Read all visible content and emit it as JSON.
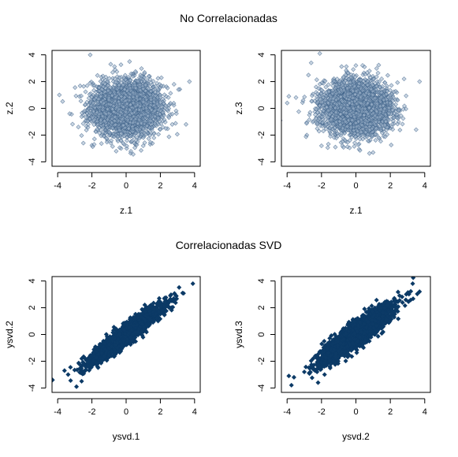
{
  "titles": {
    "top": "No Correlacionadas",
    "bottom": "Correlacionadas SVD"
  },
  "colors": {
    "uncorrelated_fill": "#9db3ca",
    "uncorrelated_stroke": "#3f6289",
    "correlated_fill": "#0c3a66",
    "axis": "#000000"
  },
  "chart_data": [
    {
      "type": "scatter",
      "xlabel": "z.1",
      "ylabel": "z.2",
      "xlim": [
        -4,
        4
      ],
      "ylim": [
        -4,
        4
      ],
      "x_ticks": [
        -4,
        -2,
        0,
        2,
        4
      ],
      "y_ticks": [
        -4,
        -2,
        0,
        2,
        4
      ],
      "marker": "diamond",
      "grid": false,
      "distribution": {
        "n_points": 3000,
        "x_mean": 0,
        "x_sd": 1,
        "y_mean": 0,
        "y_sd": 1,
        "correlation": 0.0
      },
      "notable_points": [
        {
          "x": -2.1,
          "y": 4.0
        },
        {
          "x": 0.2,
          "y": 3.5
        },
        {
          "x": -0.9,
          "y": 3.3
        },
        {
          "x": 3.7,
          "y": 2.0
        },
        {
          "x": -3.9,
          "y": 1.0
        },
        {
          "x": 3.5,
          "y": -1.2
        },
        {
          "x": -2.5,
          "y": -2.6
        },
        {
          "x": 1.0,
          "y": -2.8
        },
        {
          "x": -3.3,
          "y": -0.4
        },
        {
          "x": 2.8,
          "y": 1.8
        }
      ]
    },
    {
      "type": "scatter",
      "xlabel": "z.1",
      "ylabel": "z.3",
      "xlim": [
        -4,
        4
      ],
      "ylim": [
        -4,
        4
      ],
      "x_ticks": [
        -4,
        -2,
        0,
        2,
        4
      ],
      "y_ticks": [
        -4,
        -2,
        0,
        2,
        4
      ],
      "marker": "diamond",
      "grid": false,
      "distribution": {
        "n_points": 3000,
        "x_mean": 0,
        "x_sd": 1,
        "y_mean": 0,
        "y_sd": 1,
        "correlation": 0.0
      },
      "notable_points": [
        {
          "x": -2.1,
          "y": 4.1
        },
        {
          "x": -2.6,
          "y": 3.4
        },
        {
          "x": 3.7,
          "y": 2.0
        },
        {
          "x": 3.5,
          "y": -1.6
        },
        {
          "x": -3.9,
          "y": 0.9
        },
        {
          "x": -2.0,
          "y": -2.8
        },
        {
          "x": 1.0,
          "y": -3.3
        },
        {
          "x": 2.8,
          "y": 2.2
        },
        {
          "x": 0.5,
          "y": 3.1
        }
      ]
    },
    {
      "type": "scatter",
      "xlabel": "ysvd.1",
      "ylabel": "ysvd.2",
      "xlim": [
        -4,
        4
      ],
      "ylim": [
        -4,
        4
      ],
      "x_ticks": [
        -4,
        -2,
        0,
        2,
        4
      ],
      "y_ticks": [
        -4,
        -2,
        0,
        2,
        4
      ],
      "marker": "diamond",
      "grid": false,
      "distribution": {
        "n_points": 3000,
        "x_mean": 0,
        "x_sd": 1,
        "y_mean": 0,
        "y_sd": 1,
        "correlation": 0.94
      },
      "notable_points": [
        {
          "x": -4.3,
          "y": -3.4
        },
        {
          "x": 3.9,
          "y": 3.8
        },
        {
          "x": -2.9,
          "y": -3.9
        },
        {
          "x": -3.6,
          "y": -2.7
        },
        {
          "x": 3.3,
          "y": 3.1
        },
        {
          "x": -2.6,
          "y": -3.5
        }
      ]
    },
    {
      "type": "scatter",
      "xlabel": "ysvd.2",
      "ylabel": "ysvd.3",
      "xlim": [
        -4,
        4
      ],
      "ylim": [
        -4,
        4
      ],
      "x_ticks": [
        -4,
        -2,
        0,
        2,
        4
      ],
      "y_ticks": [
        -4,
        -2,
        0,
        2,
        4
      ],
      "marker": "diamond",
      "grid": false,
      "distribution": {
        "n_points": 3000,
        "x_mean": 0,
        "x_sd": 1,
        "y_mean": 0,
        "y_sd": 1,
        "correlation": 0.9
      },
      "notable_points": [
        {
          "x": -3.9,
          "y": -3.1
        },
        {
          "x": 3.7,
          "y": 3.2
        },
        {
          "x": -3.6,
          "y": -3.2
        },
        {
          "x": 3.3,
          "y": 3.8
        },
        {
          "x": -3.0,
          "y": -2.8
        },
        {
          "x": -2.2,
          "y": -3.6
        }
      ]
    }
  ]
}
